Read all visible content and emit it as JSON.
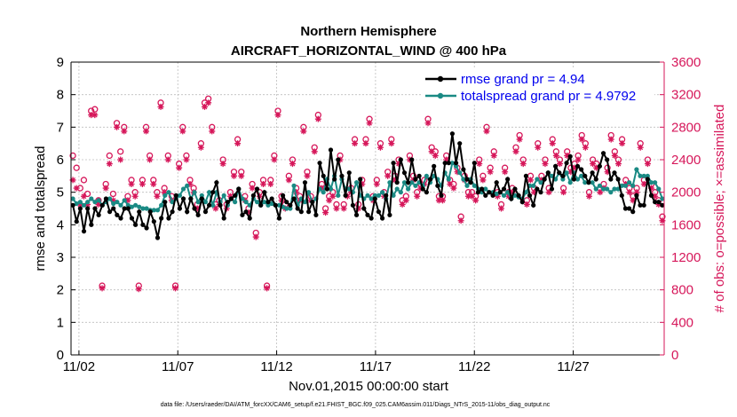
{
  "chart_data": {
    "type": "line",
    "title_line1": "Northern Hemisphere",
    "title_line2": "AIRCRAFT_HORIZONTAL_WIND @ 400 hPa",
    "xlabel": "Nov.01,2015 00:00:00 start",
    "ylabel_left": "rmse and totalspread",
    "ylabel_right": "# of obs: o=possible; ×=assimilated",
    "footnote": "data file: /Users/raeder/DAI/ATM_forcXX/CAM6_setup/f.e21.FHIST_BGC.f09_025.CAM6assim.011/Diags_NTrS_2015-11/obs_diag_output.nc",
    "ylim_left": [
      0,
      9
    ],
    "yticks_left": [
      "0",
      "1",
      "2",
      "3",
      "4",
      "5",
      "6",
      "7",
      "8",
      "9"
    ],
    "ylim_right": [
      0,
      3600
    ],
    "yticks_right": [
      "0",
      "400",
      "800",
      "1200",
      "1600",
      "2000",
      "2400",
      "2800",
      "3200",
      "3600"
    ],
    "xlim_days": [
      0.6,
      30.6
    ],
    "xtick_days": [
      1,
      6,
      11,
      16,
      21,
      26
    ],
    "xtick_labels": [
      "11/02",
      "11/07",
      "11/12",
      "11/17",
      "11/22",
      "11/27"
    ],
    "legend": {
      "rmse": "rmse grand pr = 4.94",
      "spread": "totalspread grand pr = 4.9792"
    },
    "colors": {
      "rmse": "#000000",
      "spread": "#1a8a84",
      "obs": "#d6175a"
    },
    "series": [
      {
        "name": "rmse",
        "values": [
          4.6,
          4.1,
          4.5,
          3.8,
          4.5,
          4.0,
          4.5,
          4.3,
          4.6,
          4.8,
          4.4,
          4.5,
          4.3,
          4.2,
          4.5,
          4.5,
          4.2,
          4.0,
          4.4,
          4.0,
          3.9,
          4.4,
          4.1,
          3.6,
          4.2,
          4.7,
          4.2,
          4.4,
          4.9,
          4.5,
          4.8,
          4.4,
          4.8,
          4.5,
          4.3,
          4.8,
          4.4,
          4.6,
          5.0,
          5.3,
          4.6,
          4.2,
          4.7,
          4.8,
          4.9,
          5.1,
          4.3,
          4.4,
          4.2,
          4.9,
          5.1,
          4.6,
          5.0,
          4.7,
          4.8,
          4.6,
          4.2,
          4.9,
          4.7,
          4.6,
          4.8,
          4.5,
          4.4,
          5.3,
          4.4,
          4.7,
          4.3,
          5.9,
          5.5,
          5.1,
          6.3,
          5.4,
          6.0,
          5.5,
          4.9,
          5.6,
          4.6,
          4.3,
          5.4,
          4.5,
          4.3,
          4.2,
          4.8,
          4.4,
          4.2,
          4.9,
          4.3,
          5.9,
          5.3,
          6.0,
          5.6,
          5.3,
          6.0,
          5.4,
          5.5,
          5.1,
          5.0,
          5.4,
          5.8,
          5.2,
          4.9,
          5.9,
          5.9,
          6.8,
          5.9,
          6.5,
          5.7,
          5.4,
          5.3,
          5.9,
          5.0,
          5.1,
          4.9,
          5.0,
          4.9,
          5.3,
          5.0,
          5.1,
          5.4,
          4.8,
          5.1,
          4.9,
          4.7,
          5.5,
          4.9,
          4.6,
          5.1,
          5.0,
          5.4,
          5.6,
          5.1,
          5.8,
          5.6,
          5.5,
          5.9,
          6.1,
          5.4,
          5.8,
          5.7,
          5.5,
          5.3,
          5.6,
          5.4,
          5.8,
          6.2,
          6.0,
          5.4,
          5.6,
          5.4,
          4.9,
          4.5,
          4.5,
          4.4,
          4.9,
          4.6,
          4.6,
          5.4,
          4.9,
          4.7,
          4.7,
          4.6
        ]
      },
      {
        "name": "totalspread",
        "values": [
          4.8,
          4.65,
          4.7,
          4.6,
          4.7,
          4.8,
          4.7,
          4.75,
          4.6,
          4.7,
          4.8,
          4.65,
          4.7,
          4.6,
          4.75,
          4.6,
          4.55,
          4.6,
          4.55,
          4.5,
          4.5,
          4.45,
          4.45,
          4.45,
          4.6,
          4.9,
          5.0,
          4.7,
          4.8,
          4.9,
          5.1,
          5.2,
          4.8,
          5.0,
          4.7,
          4.9,
          4.7,
          5.0,
          4.6,
          5.0,
          4.7,
          4.9,
          4.6,
          4.8,
          4.7,
          5.1,
          4.8,
          4.7,
          4.6,
          4.8,
          4.7,
          4.6,
          4.7,
          4.6,
          4.65,
          4.6,
          4.6,
          4.55,
          4.5,
          4.5,
          5.2,
          4.6,
          4.8,
          4.7,
          5.0,
          4.7,
          4.8,
          5.1,
          5.0,
          5.4,
          5.1,
          5.5,
          4.9,
          5.4,
          5.1,
          5.1,
          5.0,
          5.3,
          4.9,
          4.8,
          4.9,
          4.8,
          4.9,
          4.9,
          5.0,
          4.8,
          5.3,
          4.9,
          5.1,
          5.0,
          5.3,
          5.1,
          5.3,
          5.2,
          5.3,
          5.2,
          5.5,
          5.3,
          5.5,
          5.4,
          5.2,
          5.6,
          5.4,
          5.9,
          5.8,
          5.6,
          5.4,
          5.2,
          5.4,
          5.2,
          5.1,
          5.0,
          5.1,
          5.0,
          5.0,
          4.95,
          5.0,
          4.9,
          5.0,
          4.8,
          4.9,
          4.85,
          4.8,
          5.0,
          5.2,
          5.2,
          5.4,
          5.3,
          5.4,
          5.6,
          5.5,
          5.4,
          5.6,
          5.4,
          5.6,
          5.3,
          5.6,
          5.4,
          5.5,
          5.3,
          5.3,
          5.3,
          5.1,
          5.2,
          5.1,
          5.1,
          5.0,
          5.1,
          5.1,
          5.2,
          5.2,
          5.3,
          5.2,
          5.7,
          5.5,
          5.5,
          5.5,
          5.3,
          5.3,
          5.1,
          4.8
        ]
      },
      {
        "name": "obs_possible",
        "values": [
          2450,
          2300,
          2050,
          2150,
          1980,
          3000,
          3020,
          1900,
          850,
          2100,
          2450,
          1980,
          2850,
          2500,
          2800,
          1950,
          2150,
          2000,
          850,
          2150,
          2800,
          2450,
          2150,
          2000,
          3100,
          2050,
          2450,
          1950,
          850,
          2350,
          2800,
          2450,
          2150,
          2050,
          1850,
          2600,
          3100,
          3150,
          2800,
          1850,
          1900,
          2400,
          1850,
          2000,
          2250,
          2650,
          2250,
          1950,
          1800,
          2100,
          1500,
          2000,
          2150,
          850,
          2150,
          2450,
          3000,
          1950,
          1850,
          2200,
          2400,
          2050,
          1950,
          2800,
          2250,
          1950,
          2550,
          2950,
          2100,
          1800,
          1950,
          2000,
          1850,
          2450,
          1850,
          2000,
          2050,
          2650,
          1850,
          2150,
          2650,
          2900,
          1950,
          2150,
          2600,
          2000,
          2250,
          2650,
          2200,
          2400,
          1900,
          1950,
          2450,
          2200,
          2000,
          2100,
          2150,
          2900,
          2550,
          2500,
          1950,
          1950,
          2450,
          2150,
          2100,
          2300,
          1700,
          2200,
          2000,
          2000,
          1950,
          2400,
          2200,
          2800,
          2300,
          2500,
          2000,
          1850,
          2300,
          2000,
          2050,
          2550,
          2700,
          2400,
          1900,
          2200,
          2050,
          2600,
          2200,
          2400,
          2050,
          2650,
          2500,
          2400,
          2050,
          2500,
          2300,
          2350,
          2450,
          2700,
          2600,
          2000,
          2400,
          2350,
          2050,
          2100,
          2300,
          2700,
          2500,
          2400,
          2650,
          2150,
          2050,
          1950,
          2050,
          2600,
          2150,
          2400,
          2100,
          2000,
          1900,
          1700
        ]
      },
      {
        "name": "obs_assimilated",
        "values": [
          2150,
          2050,
          1850,
          1950,
          1850,
          2950,
          2950,
          1850,
          820,
          2050,
          2350,
          1900,
          2800,
          2400,
          2750,
          1900,
          2100,
          1950,
          810,
          2100,
          2750,
          2400,
          2100,
          1950,
          3050,
          2000,
          2400,
          1900,
          820,
          2300,
          2750,
          2400,
          2100,
          2000,
          1800,
          2550,
          3050,
          3100,
          2750,
          1800,
          1850,
          2350,
          1800,
          1950,
          2200,
          2600,
          2200,
          1900,
          1750,
          2050,
          1450,
          1950,
          2100,
          820,
          2100,
          2400,
          2950,
          1900,
          1800,
          2150,
          2350,
          2000,
          1900,
          2750,
          2200,
          1900,
          2500,
          2900,
          2050,
          1750,
          1900,
          1950,
          1800,
          2400,
          1800,
          1950,
          2000,
          2600,
          1800,
          2100,
          2600,
          2850,
          1900,
          2100,
          2550,
          1950,
          2200,
          2600,
          2150,
          2350,
          1850,
          1900,
          2400,
          2150,
          1950,
          2050,
          2100,
          2850,
          2500,
          2450,
          1900,
          1900,
          2400,
          2100,
          2050,
          2250,
          1650,
          2150,
          1950,
          1950,
          1900,
          2350,
          2150,
          2750,
          2250,
          2450,
          1950,
          1800,
          2250,
          1950,
          2000,
          2500,
          2650,
          2350,
          1850,
          2150,
          2000,
          2550,
          2150,
          2350,
          2000,
          2600,
          2450,
          2350,
          2000,
          2450,
          2250,
          2300,
          2400,
          2650,
          2550,
          1950,
          2350,
          2300,
          2000,
          2050,
          2250,
          2650,
          2450,
          2350,
          2600,
          2100,
          2000,
          1900,
          2000,
          2550,
          2100,
          2350,
          2050,
          1950,
          1850,
          1650
        ]
      }
    ]
  }
}
